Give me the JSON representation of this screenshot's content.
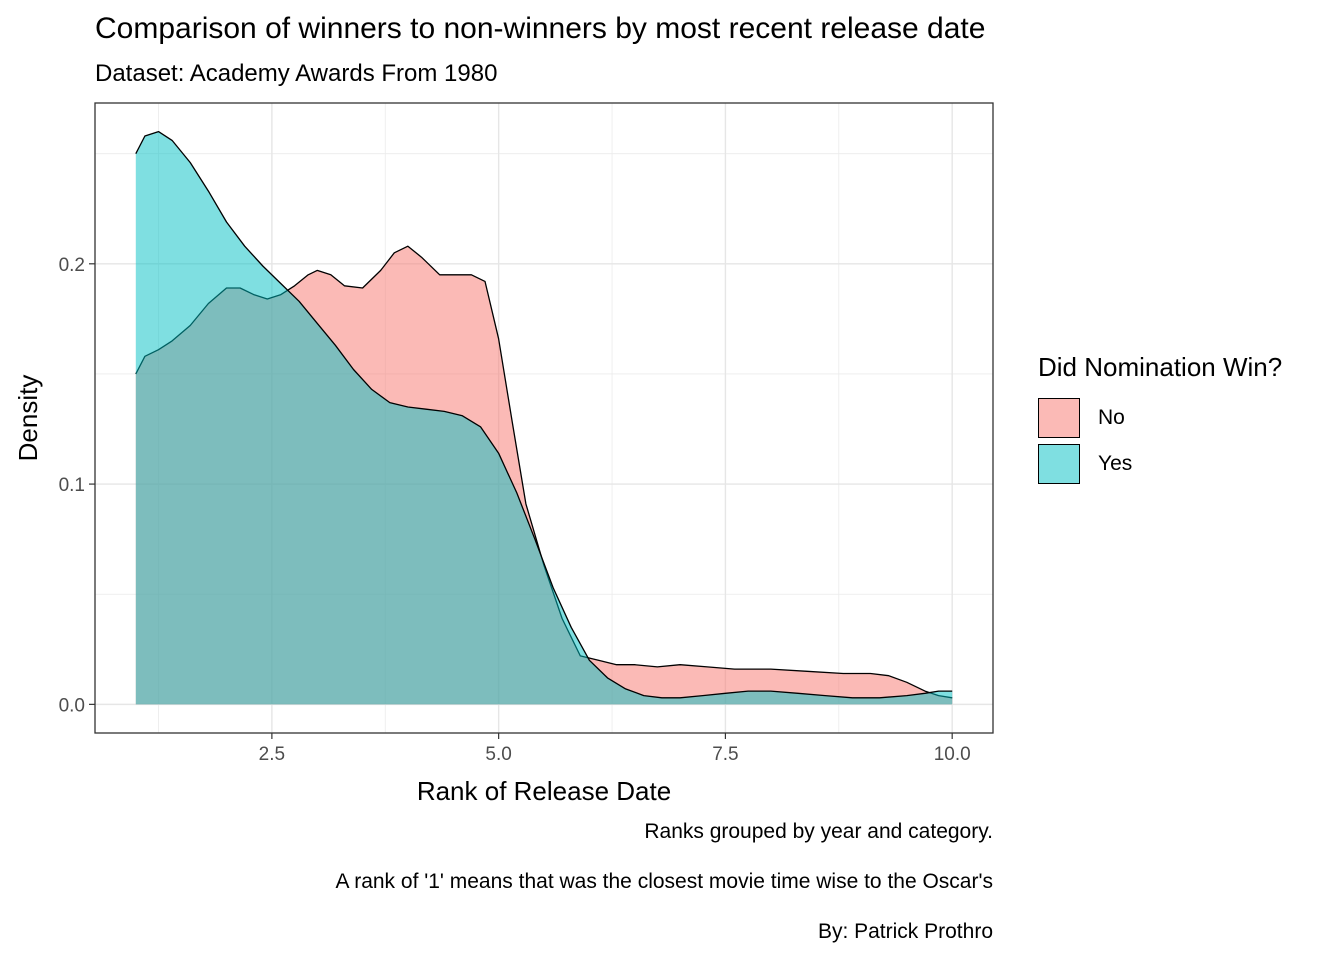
{
  "chart_data": {
    "type": "area",
    "title": "Comparison of winners to non-winners by most recent release date",
    "subtitle": "Dataset: Academy Awards From 1980",
    "xlabel": "Rank of Release Date",
    "ylabel": "Density",
    "xlim": [
      0.55,
      10.45
    ],
    "ylim": [
      -0.013,
      0.273
    ],
    "x_ticks": [
      2.5,
      5.0,
      7.5,
      10.0
    ],
    "x_tick_labels": [
      "2.5",
      "5.0",
      "7.5",
      "10.0"
    ],
    "y_ticks": [
      0.0,
      0.1,
      0.2
    ],
    "y_tick_labels": [
      "0.0",
      "0.1",
      "0.2"
    ],
    "grid": true,
    "legend": {
      "title": "Did Nomination Win?",
      "position": "right",
      "entries": [
        "No",
        "Yes"
      ]
    },
    "series": [
      {
        "name": "No",
        "color": "#F8766D",
        "alpha": 0.5,
        "x": [
          1.0,
          1.1,
          1.25,
          1.4,
          1.6,
          1.8,
          2.0,
          2.15,
          2.3,
          2.45,
          2.6,
          2.75,
          2.9,
          3.0,
          3.15,
          3.3,
          3.5,
          3.7,
          3.85,
          4.0,
          4.15,
          4.35,
          4.5,
          4.7,
          4.85,
          5.0,
          5.15,
          5.3,
          5.5,
          5.7,
          5.9,
          6.1,
          6.3,
          6.5,
          6.75,
          7.0,
          7.3,
          7.6,
          8.0,
          8.4,
          8.8,
          9.1,
          9.3,
          9.5,
          9.7,
          9.85,
          10.0
        ],
        "y": [
          0.15,
          0.158,
          0.161,
          0.165,
          0.172,
          0.182,
          0.189,
          0.189,
          0.186,
          0.184,
          0.186,
          0.19,
          0.195,
          0.197,
          0.195,
          0.19,
          0.189,
          0.197,
          0.205,
          0.208,
          0.203,
          0.195,
          0.195,
          0.195,
          0.192,
          0.166,
          0.128,
          0.091,
          0.063,
          0.039,
          0.022,
          0.02,
          0.018,
          0.018,
          0.017,
          0.018,
          0.017,
          0.016,
          0.016,
          0.015,
          0.014,
          0.014,
          0.013,
          0.01,
          0.006,
          0.004,
          0.003
        ]
      },
      {
        "name": "Yes",
        "color": "#00BFC4",
        "alpha": 0.5,
        "x": [
          1.0,
          1.1,
          1.25,
          1.4,
          1.6,
          1.8,
          2.0,
          2.2,
          2.4,
          2.6,
          2.8,
          3.0,
          3.2,
          3.4,
          3.6,
          3.8,
          4.0,
          4.2,
          4.4,
          4.6,
          4.8,
          5.0,
          5.2,
          5.4,
          5.6,
          5.8,
          6.0,
          6.2,
          6.4,
          6.6,
          6.8,
          7.0,
          7.25,
          7.5,
          7.75,
          8.0,
          8.3,
          8.6,
          8.9,
          9.2,
          9.5,
          9.7,
          9.85,
          10.0
        ],
        "y": [
          0.25,
          0.258,
          0.26,
          0.256,
          0.246,
          0.233,
          0.219,
          0.208,
          0.199,
          0.191,
          0.183,
          0.173,
          0.163,
          0.152,
          0.143,
          0.137,
          0.135,
          0.134,
          0.133,
          0.131,
          0.126,
          0.114,
          0.096,
          0.075,
          0.053,
          0.035,
          0.02,
          0.012,
          0.007,
          0.004,
          0.003,
          0.003,
          0.004,
          0.005,
          0.006,
          0.006,
          0.005,
          0.004,
          0.003,
          0.003,
          0.004,
          0.005,
          0.006,
          0.006
        ]
      }
    ],
    "captions": [
      "Ranks grouped by year and category.",
      "A rank of '1' means that was the closest movie time wise to the Oscar's",
      "By: Patrick Prothro"
    ]
  }
}
